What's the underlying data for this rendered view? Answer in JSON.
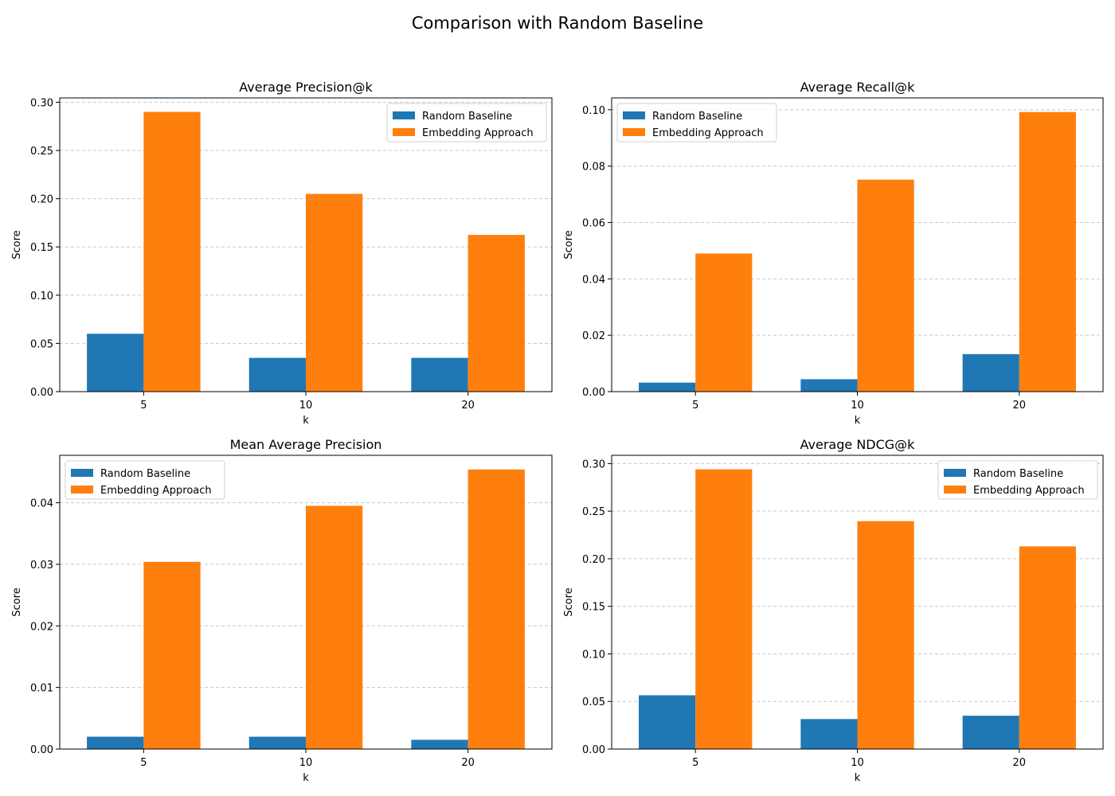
{
  "figure": {
    "title": "Comparison with Random Baseline"
  },
  "colors": {
    "random": "#1f77b4",
    "embedding": "#ff7f0e",
    "grid": "#c8c8c8"
  },
  "chart_data": [
    {
      "type": "bar",
      "title": "Average Precision@k",
      "xlabel": "k",
      "ylabel": "Score",
      "categories": [
        "5",
        "10",
        "20"
      ],
      "series": [
        {
          "name": "Random Baseline",
          "values": [
            0.06,
            0.035,
            0.035
          ]
        },
        {
          "name": "Embedding Approach",
          "values": [
            0.29,
            0.205,
            0.1625
          ]
        }
      ],
      "ylim": [
        0,
        0.3045
      ],
      "yticks": [
        0.0,
        0.05,
        0.1,
        0.15,
        0.2,
        0.25,
        0.3
      ],
      "ytick_labels": [
        "0.00",
        "0.05",
        "0.10",
        "0.15",
        "0.20",
        "0.25",
        "0.30"
      ],
      "grid": "y-dashed",
      "legend": "top-right"
    },
    {
      "type": "bar",
      "title": "Average Recall@k",
      "xlabel": "k",
      "ylabel": "Score",
      "categories": [
        "5",
        "10",
        "20"
      ],
      "series": [
        {
          "name": "Random Baseline",
          "values": [
            0.0032,
            0.0044,
            0.0133
          ]
        },
        {
          "name": "Embedding Approach",
          "values": [
            0.049,
            0.0752,
            0.0992
          ]
        }
      ],
      "ylim": [
        0,
        0.1042
      ],
      "yticks": [
        0.0,
        0.02,
        0.04,
        0.06,
        0.08,
        0.1
      ],
      "ytick_labels": [
        "0.00",
        "0.02",
        "0.04",
        "0.06",
        "0.08",
        "0.10"
      ],
      "grid": "y-dashed",
      "legend": "top-left"
    },
    {
      "type": "bar",
      "title": "Mean Average Precision",
      "xlabel": "k",
      "ylabel": "Score",
      "categories": [
        "5",
        "10",
        "20"
      ],
      "series": [
        {
          "name": "Random Baseline",
          "values": [
            0.002,
            0.002,
            0.0015
          ]
        },
        {
          "name": "Embedding Approach",
          "values": [
            0.0304,
            0.0395,
            0.0454
          ]
        }
      ],
      "ylim": [
        0,
        0.0477
      ],
      "yticks": [
        0.0,
        0.01,
        0.02,
        0.03,
        0.04
      ],
      "ytick_labels": [
        "0.00",
        "0.01",
        "0.02",
        "0.03",
        "0.04"
      ],
      "grid": "y-dashed",
      "legend": "top-left"
    },
    {
      "type": "bar",
      "title": "Average NDCG@k",
      "xlabel": "k",
      "ylabel": "Score",
      "categories": [
        "5",
        "10",
        "20"
      ],
      "series": [
        {
          "name": "Random Baseline",
          "values": [
            0.0565,
            0.0315,
            0.035
          ]
        },
        {
          "name": "Embedding Approach",
          "values": [
            0.294,
            0.2395,
            0.213
          ]
        }
      ],
      "ylim": [
        0,
        0.3087
      ],
      "yticks": [
        0.0,
        0.05,
        0.1,
        0.15,
        0.2,
        0.25,
        0.3
      ],
      "ytick_labels": [
        "0.00",
        "0.05",
        "0.10",
        "0.15",
        "0.20",
        "0.25",
        "0.30"
      ],
      "grid": "y-dashed",
      "legend": "top-right"
    }
  ]
}
